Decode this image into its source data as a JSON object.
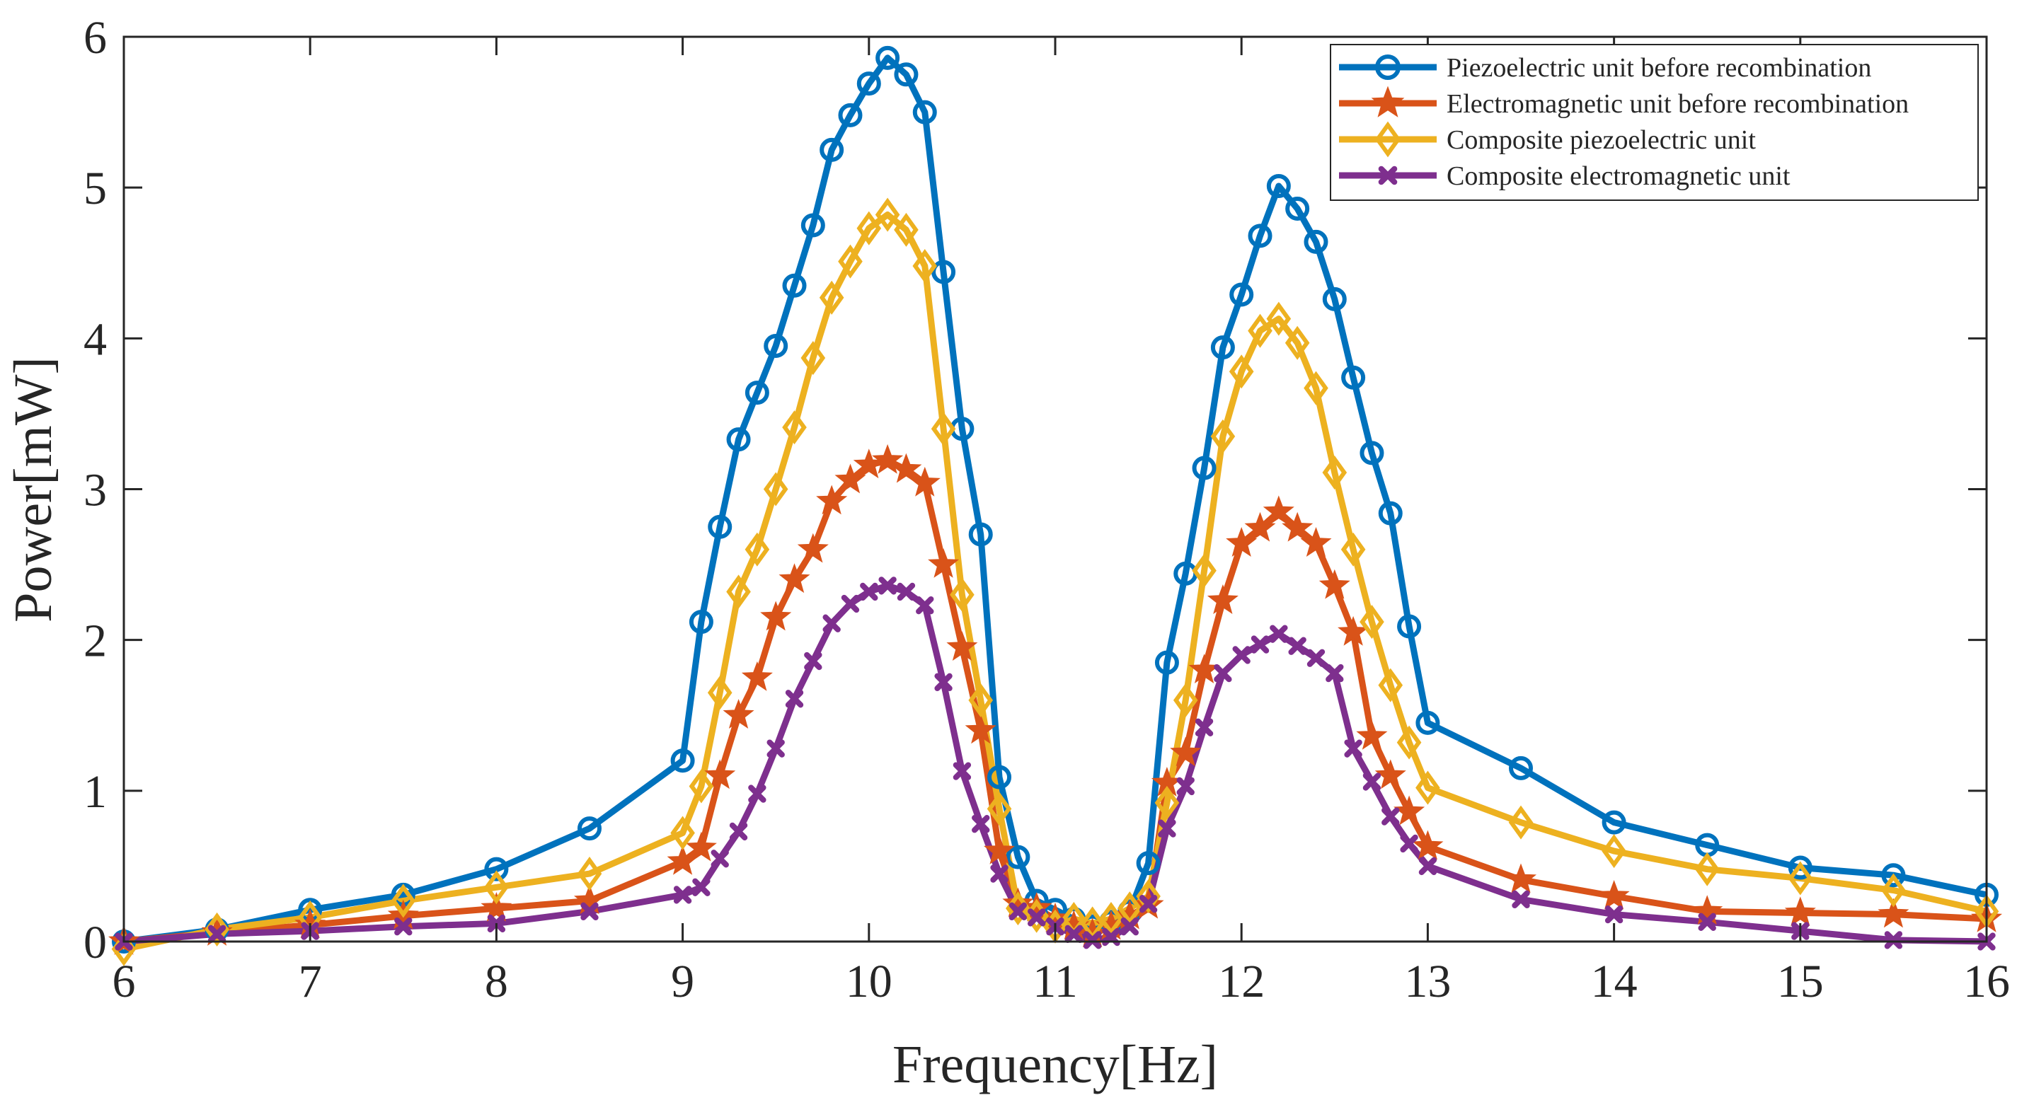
{
  "chart_data": {
    "type": "line",
    "title": "",
    "xlabel": "Frequency[Hz]",
    "ylabel": "Power[mW]",
    "xlim": [
      6,
      16
    ],
    "ylim": [
      0,
      6
    ],
    "xticks": [
      "6",
      "7",
      "8",
      "9",
      "10",
      "11",
      "12",
      "13",
      "14",
      "15",
      "16"
    ],
    "yticks": [
      "0",
      "1",
      "2",
      "3",
      "4",
      "5",
      "6"
    ],
    "grid": false,
    "legend_position": "top-right",
    "x": [
      6,
      6.5,
      7,
      7.5,
      8,
      8.5,
      9,
      9.1,
      9.2,
      9.3,
      9.4,
      9.5,
      9.6,
      9.7,
      9.8,
      9.9,
      10,
      10.1,
      10.2,
      10.3,
      10.4,
      10.5,
      10.6,
      10.7,
      10.8,
      10.9,
      11,
      11.1,
      11.2,
      11.3,
      11.4,
      11.5,
      11.6,
      11.7,
      11.8,
      11.9,
      12,
      12.1,
      12.2,
      12.3,
      12.4,
      12.5,
      12.6,
      12.7,
      12.8,
      12.9,
      13,
      13.5,
      14,
      14.5,
      15,
      15.5,
      16
    ],
    "series": [
      {
        "name": "Piezoelectric unit before recombination",
        "color": "#0072BD",
        "marker": "circle",
        "values": [
          0,
          0.08,
          0.21,
          0.31,
          0.48,
          0.75,
          1.2,
          2.12,
          2.75,
          3.33,
          3.64,
          3.95,
          4.35,
          4.75,
          5.25,
          5.48,
          5.69,
          5.86,
          5.75,
          5.5,
          4.44,
          3.4,
          2.7,
          1.09,
          0.56,
          0.27,
          0.21,
          0.15,
          0.1,
          0.13,
          0.2,
          0.52,
          1.85,
          2.44,
          3.14,
          3.94,
          4.29,
          4.68,
          5.01,
          4.86,
          4.64,
          4.26,
          3.74,
          3.24,
          2.84,
          2.09,
          1.45,
          1.15,
          0.79,
          0.64,
          0.49,
          0.44,
          0.31
        ]
      },
      {
        "name": "Electromagnetic unit before recombination",
        "color": "#D95319",
        "marker": "star",
        "values": [
          0,
          0.06,
          0.11,
          0.17,
          0.22,
          0.27,
          0.53,
          0.62,
          1.1,
          1.5,
          1.75,
          2.15,
          2.4,
          2.6,
          2.92,
          3.06,
          3.16,
          3.19,
          3.13,
          3.04,
          2.5,
          1.95,
          1.4,
          0.6,
          0.25,
          0.22,
          0.15,
          0.1,
          0.05,
          0.1,
          0.17,
          0.24,
          1.05,
          1.25,
          1.8,
          2.26,
          2.64,
          2.74,
          2.85,
          2.74,
          2.64,
          2.36,
          2.05,
          1.36,
          1.1,
          0.86,
          0.63,
          0.41,
          0.3,
          0.2,
          0.19,
          0.18,
          0.15
        ]
      },
      {
        "name": "Composite piezoelectric unit",
        "color": "#EDB120",
        "marker": "diamond",
        "values": [
          -0.05,
          0.08,
          0.16,
          0.27,
          0.36,
          0.45,
          0.72,
          1.03,
          1.65,
          2.32,
          2.6,
          3.0,
          3.41,
          3.87,
          4.27,
          4.51,
          4.73,
          4.82,
          4.72,
          4.48,
          3.4,
          2.3,
          1.6,
          0.88,
          0.22,
          0.17,
          0.1,
          0.15,
          0.12,
          0.15,
          0.22,
          0.3,
          0.92,
          1.6,
          2.46,
          3.35,
          3.78,
          4.05,
          4.13,
          3.97,
          3.67,
          3.11,
          2.6,
          2.12,
          1.7,
          1.32,
          1.02,
          0.79,
          0.6,
          0.48,
          0.42,
          0.34,
          0.2
        ]
      },
      {
        "name": "Composite electromagnetic unit",
        "color": "#7E2F8E",
        "marker": "x",
        "values": [
          0,
          0.05,
          0.07,
          0.1,
          0.12,
          0.2,
          0.31,
          0.36,
          0.55,
          0.73,
          0.98,
          1.28,
          1.61,
          1.86,
          2.11,
          2.24,
          2.32,
          2.36,
          2.32,
          2.23,
          1.72,
          1.13,
          0.78,
          0.45,
          0.2,
          0.16,
          0.1,
          0.05,
          0.01,
          0.03,
          0.1,
          0.25,
          0.75,
          1.03,
          1.42,
          1.78,
          1.9,
          1.97,
          2.04,
          1.96,
          1.88,
          1.78,
          1.28,
          1.06,
          0.83,
          0.65,
          0.5,
          0.28,
          0.18,
          0.13,
          0.07,
          0.01,
          0.0
        ]
      }
    ]
  }
}
